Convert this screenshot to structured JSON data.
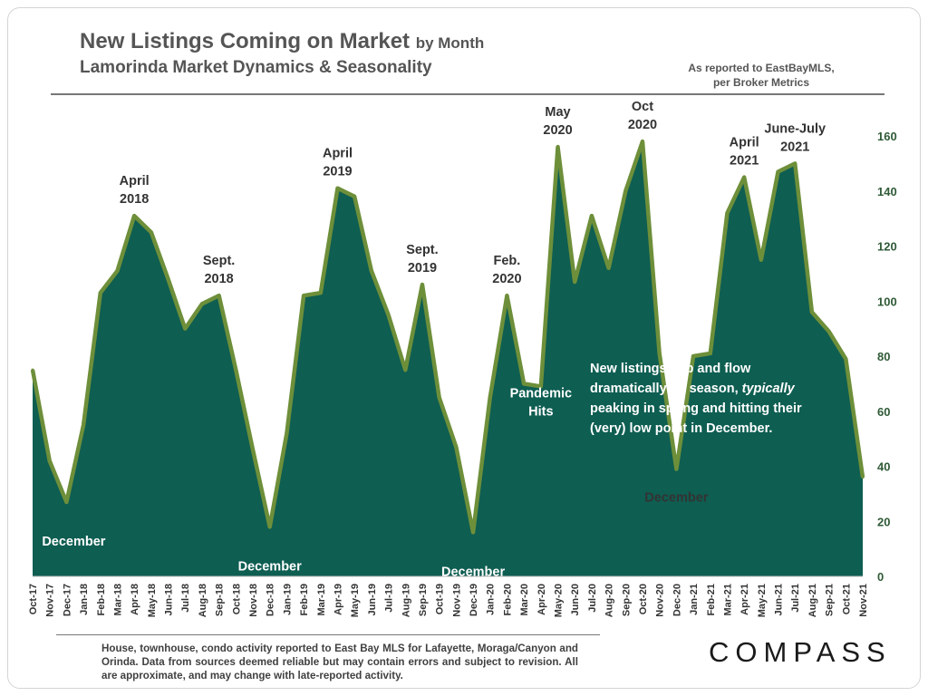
{
  "header": {
    "title_main": "New Listings Coming on Market",
    "title_suffix": "by Month",
    "subtitle": "Lamorinda Market Dynamics & Seasonality",
    "source_line1": "As reported to EastBayMLS,",
    "source_line2": "per Broker Metrics"
  },
  "footer": {
    "note": "House, townhouse, condo activity reported to East Bay MLS for Lafayette, Moraga/Canyon and Orinda. Data from sources deemed reliable but may contain errors and subject to revision. All are approximate, and may change with late-reported activity.",
    "logo": "COMPASS"
  },
  "colors": {
    "fill": "#0e5e52",
    "line": "#6e8f3a",
    "axis_text": "#2f5a37",
    "label_dark": "#333333",
    "label_light": "#ffffff"
  },
  "chart_data": {
    "type": "area",
    "title": "New Listings Coming on Market by Month",
    "ylim": [
      0,
      160
    ],
    "yticks": [
      0,
      20,
      40,
      60,
      80,
      100,
      120,
      140,
      160
    ],
    "y_axis_side": "right",
    "categories": [
      "Oct-17",
      "Nov-17",
      "Dec-17",
      "Jan-18",
      "Feb-18",
      "Mar-18",
      "Apr-18",
      "May-18",
      "Jun-18",
      "Jul-18",
      "Aug-18",
      "Sep-18",
      "Oct-18",
      "Nov-18",
      "Dec-18",
      "Jan-19",
      "Feb-19",
      "Mar-19",
      "Apr-19",
      "May-19",
      "Jun-19",
      "Jul-19",
      "Aug-19",
      "Sep-19",
      "Oct-19",
      "Nov-19",
      "Dec-19",
      "Jan-20",
      "Feb-20",
      "Mar-20",
      "Apr-20",
      "May-20",
      "Jun-20",
      "Jul-20",
      "Aug-20",
      "Sep-20",
      "Oct-20",
      "Nov-20",
      "Dec-20",
      "Jan-21",
      "Feb-21",
      "Mar-21",
      "Apr-21",
      "May-21",
      "Jun-21",
      "Jul-21",
      "Aug-21",
      "Sep-21",
      "Oct-21",
      "Nov-21"
    ],
    "series": [
      {
        "name": "New Listings",
        "values": [
          75,
          42,
          27,
          55,
          103,
          111,
          131,
          125,
          108,
          90,
          99,
          102,
          75,
          46,
          18,
          52,
          102,
          103,
          141,
          138,
          111,
          95,
          75,
          106,
          65,
          47,
          16,
          65,
          102,
          70,
          69,
          156,
          107,
          131,
          112,
          140,
          158,
          81,
          39,
          80,
          81,
          132,
          145,
          115,
          147,
          150,
          96,
          89,
          79,
          36
        ]
      }
    ],
    "annotations": [
      {
        "text_lines": [
          "April",
          "2018"
        ],
        "idx": 6,
        "color": "dark"
      },
      {
        "text_lines": [
          "Sept.",
          "2018"
        ],
        "idx": 11,
        "color": "dark"
      },
      {
        "text_lines": [
          "April",
          "2019"
        ],
        "idx": 18,
        "color": "dark"
      },
      {
        "text_lines": [
          "Sept.",
          "2019"
        ],
        "idx": 23,
        "color": "dark"
      },
      {
        "text_lines": [
          "Feb.",
          "2020"
        ],
        "idx": 28,
        "color": "dark"
      },
      {
        "text_lines": [
          "May",
          "2020"
        ],
        "idx": 31,
        "color": "dark"
      },
      {
        "text_lines": [
          "Oct",
          "2020"
        ],
        "idx": 36,
        "color": "dark"
      },
      {
        "text_lines": [
          "April",
          "2021"
        ],
        "idx": 42,
        "color": "dark"
      },
      {
        "text_lines": [
          "June-July",
          "2021"
        ],
        "idx": 45,
        "color": "dark"
      },
      {
        "text_lines": [
          "December"
        ],
        "idx": 2,
        "color": "light"
      },
      {
        "text_lines": [
          "December"
        ],
        "idx": 14,
        "color": "light"
      },
      {
        "text_lines": [
          "December"
        ],
        "idx": 26,
        "color": "light"
      },
      {
        "text_lines": [
          "December"
        ],
        "idx": 38,
        "color": "light"
      },
      {
        "text_lines": [
          "Pandemic",
          "Hits"
        ],
        "idx": 30,
        "color": "light"
      }
    ],
    "callout": {
      "lines": [
        "New listings ebb and flow",
        "dramatically by season, typically",
        "peaking in spring and hitting their",
        "(very) low point in December."
      ],
      "emphasis_word": "typically"
    }
  }
}
